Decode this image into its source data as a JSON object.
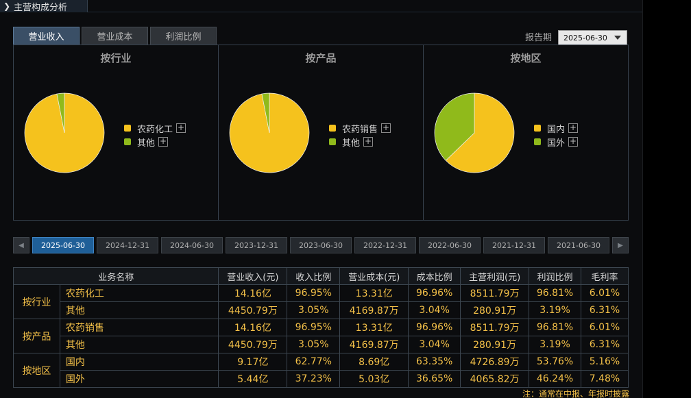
{
  "title": "主营构成分析",
  "tabs": [
    "营业收入",
    "营业成本",
    "利润比例"
  ],
  "period": {
    "label": "报告期",
    "value": "2025-06-30"
  },
  "colors": {
    "yellow": "#f5c21d",
    "green": "#90ba1b",
    "accent": "#f3c048"
  },
  "chart_data": [
    {
      "type": "pie",
      "title": "按行业",
      "labels": [
        "农药化工",
        "其他"
      ],
      "values": [
        96.95,
        3.05
      ],
      "colors": [
        "#f5c21d",
        "#90ba1b"
      ]
    },
    {
      "type": "pie",
      "title": "按产品",
      "labels": [
        "农药销售",
        "其他"
      ],
      "values": [
        96.95,
        3.05
      ],
      "colors": [
        "#f5c21d",
        "#90ba1b"
      ]
    },
    {
      "type": "pie",
      "title": "按地区",
      "labels": [
        "国内",
        "国外"
      ],
      "values": [
        62.77,
        37.23
      ],
      "colors": [
        "#f5c21d",
        "#90ba1b"
      ]
    }
  ],
  "dates": [
    "2025-06-30",
    "2024-12-31",
    "2024-06-30",
    "2023-12-31",
    "2023-06-30",
    "2022-12-31",
    "2022-06-30",
    "2021-12-31",
    "2021-06-30"
  ],
  "table": {
    "headers": [
      "业务名称",
      "营业收入(元)",
      "收入比例",
      "营业成本(元)",
      "成本比例",
      "主营利润(元)",
      "利润比例",
      "毛利率"
    ],
    "groups": [
      {
        "name": "按行业",
        "rows": [
          [
            "农药化工",
            "14.16亿",
            "96.95%",
            "13.31亿",
            "96.96%",
            "8511.79万",
            "96.81%",
            "6.01%"
          ],
          [
            "其他",
            "4450.79万",
            "3.05%",
            "4169.87万",
            "3.04%",
            "280.91万",
            "3.19%",
            "6.31%"
          ]
        ]
      },
      {
        "name": "按产品",
        "rows": [
          [
            "农药销售",
            "14.16亿",
            "96.95%",
            "13.31亿",
            "96.96%",
            "8511.79万",
            "96.81%",
            "6.01%"
          ],
          [
            "其他",
            "4450.79万",
            "3.05%",
            "4169.87万",
            "3.04%",
            "280.91万",
            "3.19%",
            "6.31%"
          ]
        ]
      },
      {
        "name": "按地区",
        "rows": [
          [
            "国内",
            "9.17亿",
            "62.77%",
            "8.69亿",
            "63.35%",
            "4726.89万",
            "53.76%",
            "5.16%"
          ],
          [
            "国外",
            "5.44亿",
            "37.23%",
            "5.03亿",
            "36.65%",
            "4065.82万",
            "46.24%",
            "7.48%"
          ]
        ]
      }
    ]
  },
  "note": "注：通常在中报、年报时披露"
}
